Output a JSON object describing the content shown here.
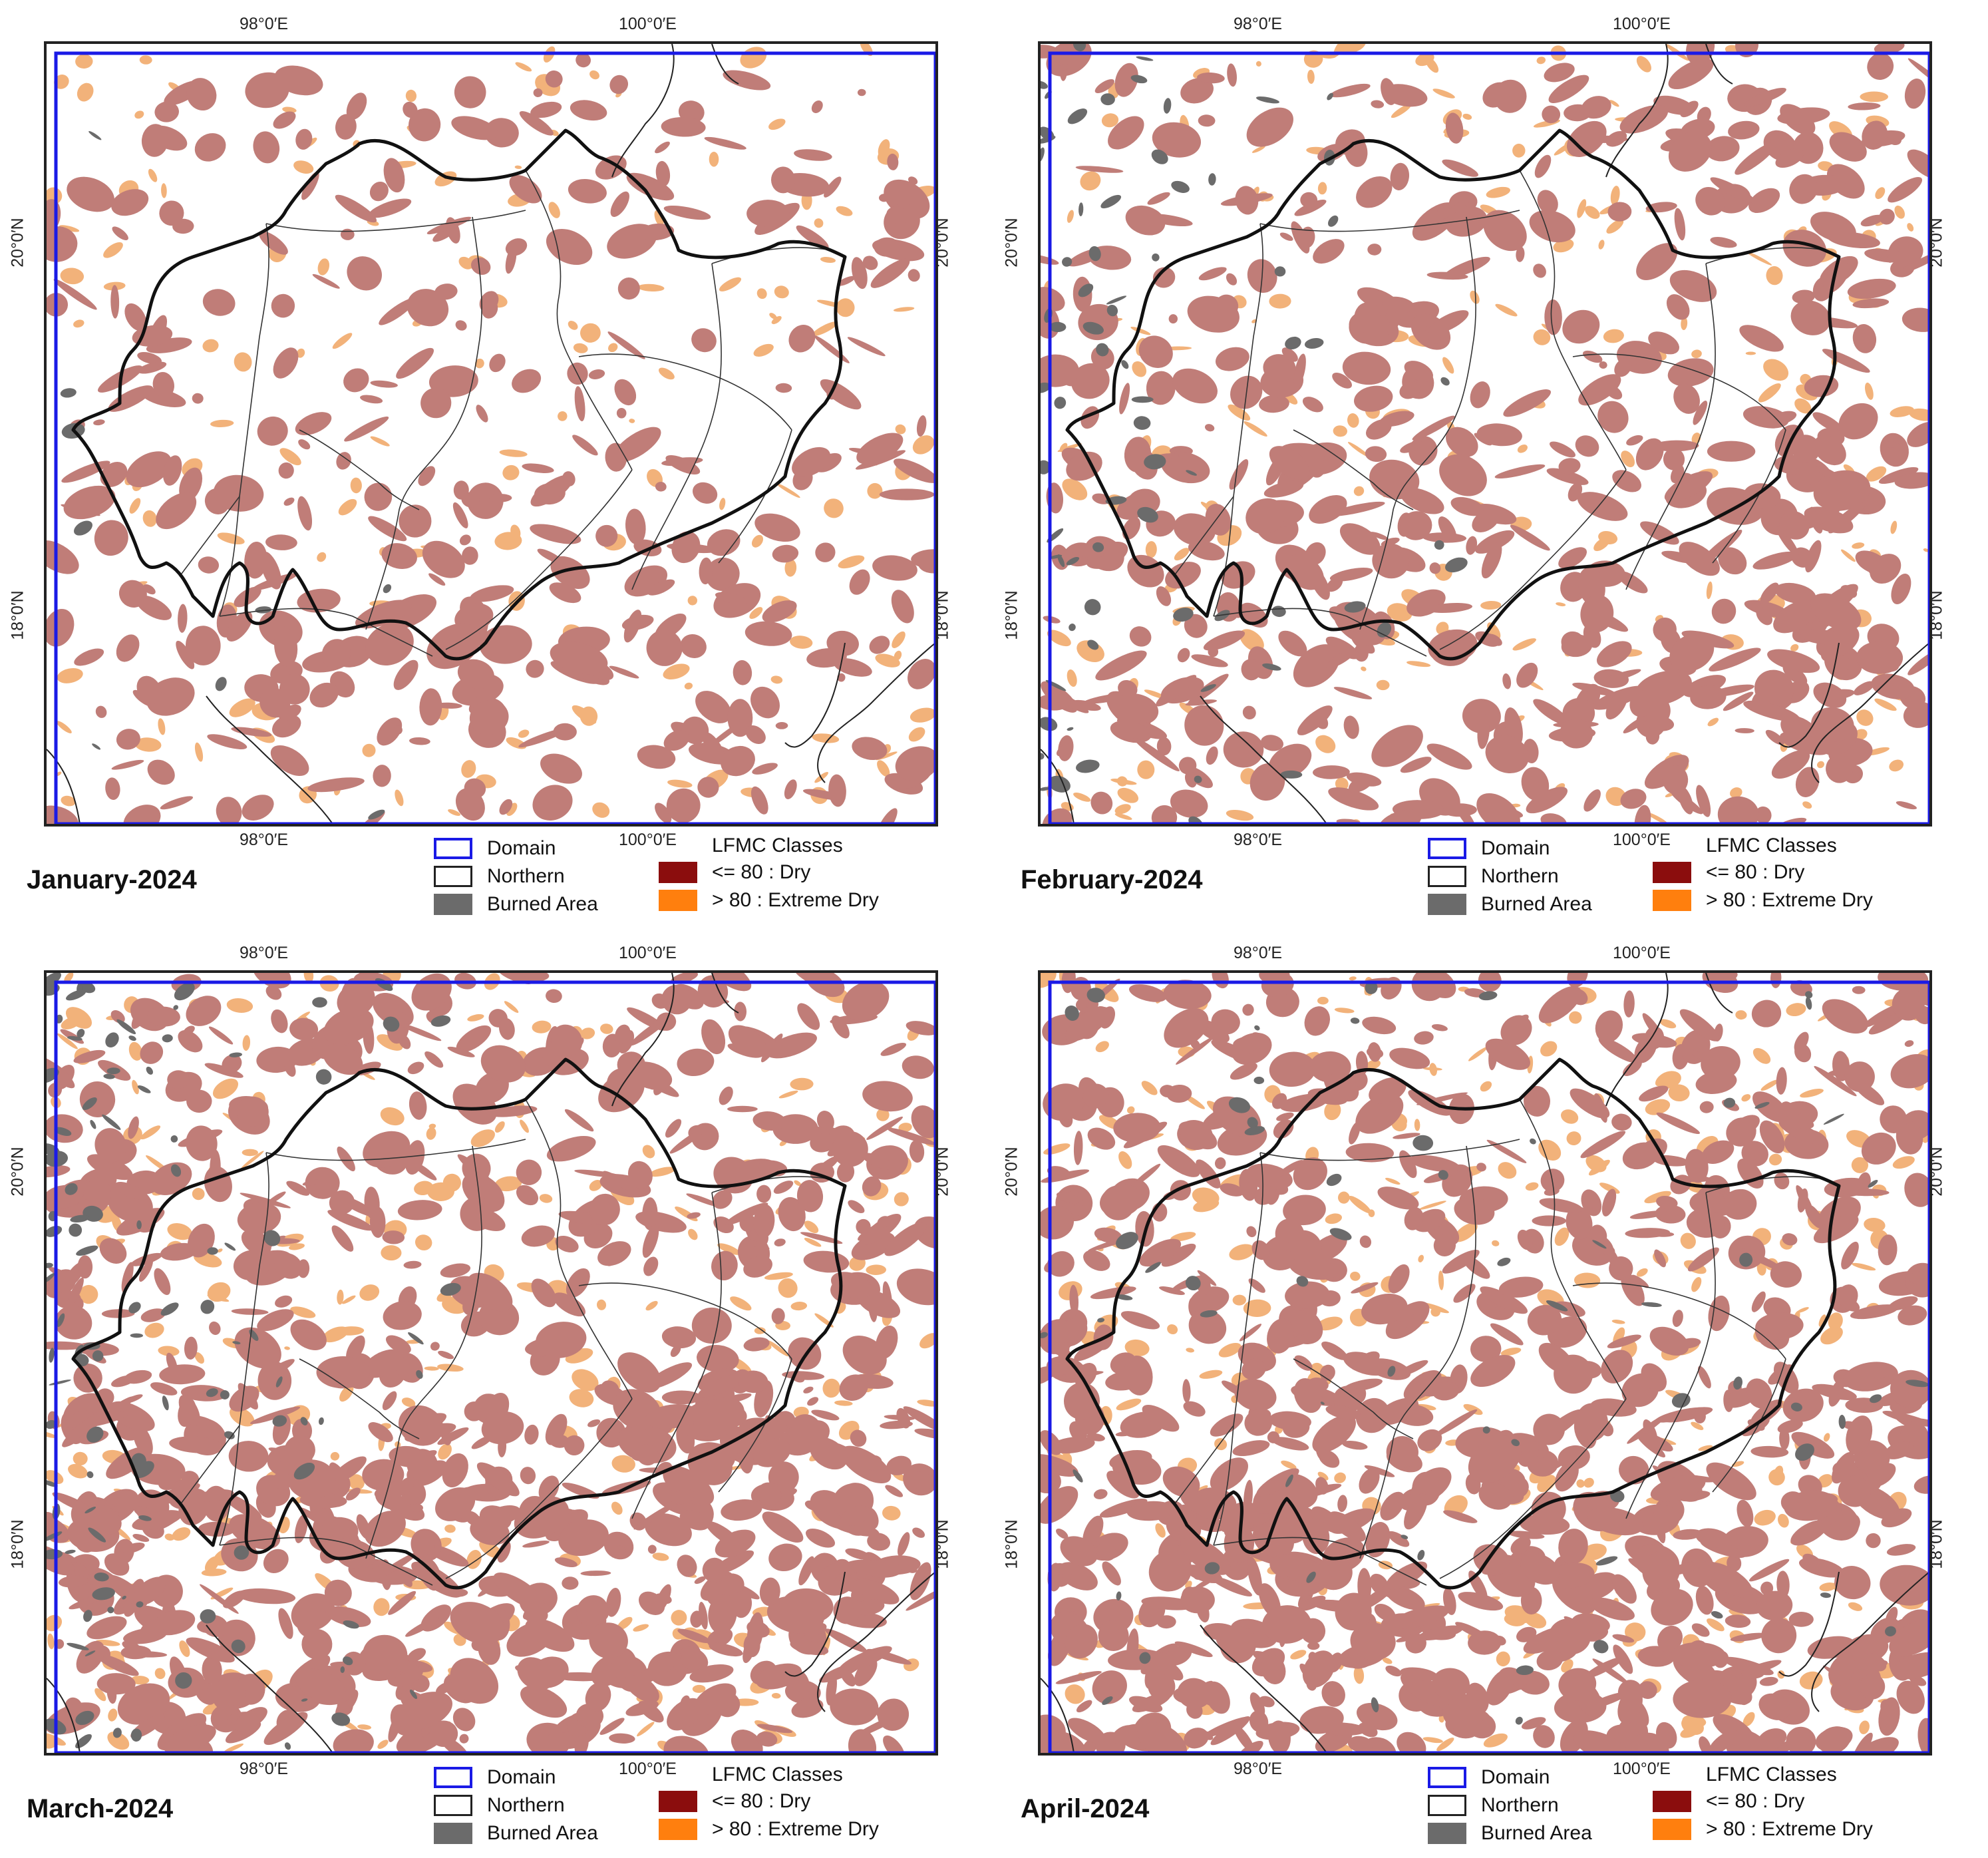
{
  "axes": {
    "lon_left": "98°0′E",
    "lon_right": "100°0′E",
    "lat_top": "20°0′N",
    "lat_bottom": "18°0′N"
  },
  "legend": {
    "domain_label": "Domain",
    "northern_label": "Northern",
    "burned_label": "Burned Area",
    "lfmc_title": "LFMC Classes",
    "dry_label": "<= 80 : Dry",
    "extreme_label": ">  80  : Extreme Dry"
  },
  "colors": {
    "domain": "#1a1ae6",
    "northern": "#222222",
    "burned": "#6b6b6b",
    "dry": "#8b0d0d",
    "extreme_dry": "#ff7f0e",
    "map_dry_fill": "#c07d78",
    "map_extreme_fill": "#f2b27a"
  },
  "panels": [
    {
      "id": "january",
      "title": "January-2024",
      "dry_extent": 0.22,
      "burned_extent": 0.01
    },
    {
      "id": "february",
      "title": "February-2024",
      "dry_extent": 0.38,
      "burned_extent": 0.08
    },
    {
      "id": "march",
      "title": "March-2024",
      "dry_extent": 0.62,
      "burned_extent": 0.12
    },
    {
      "id": "april",
      "title": "April-2024",
      "dry_extent": 0.64,
      "burned_extent": 0.07
    }
  ]
}
